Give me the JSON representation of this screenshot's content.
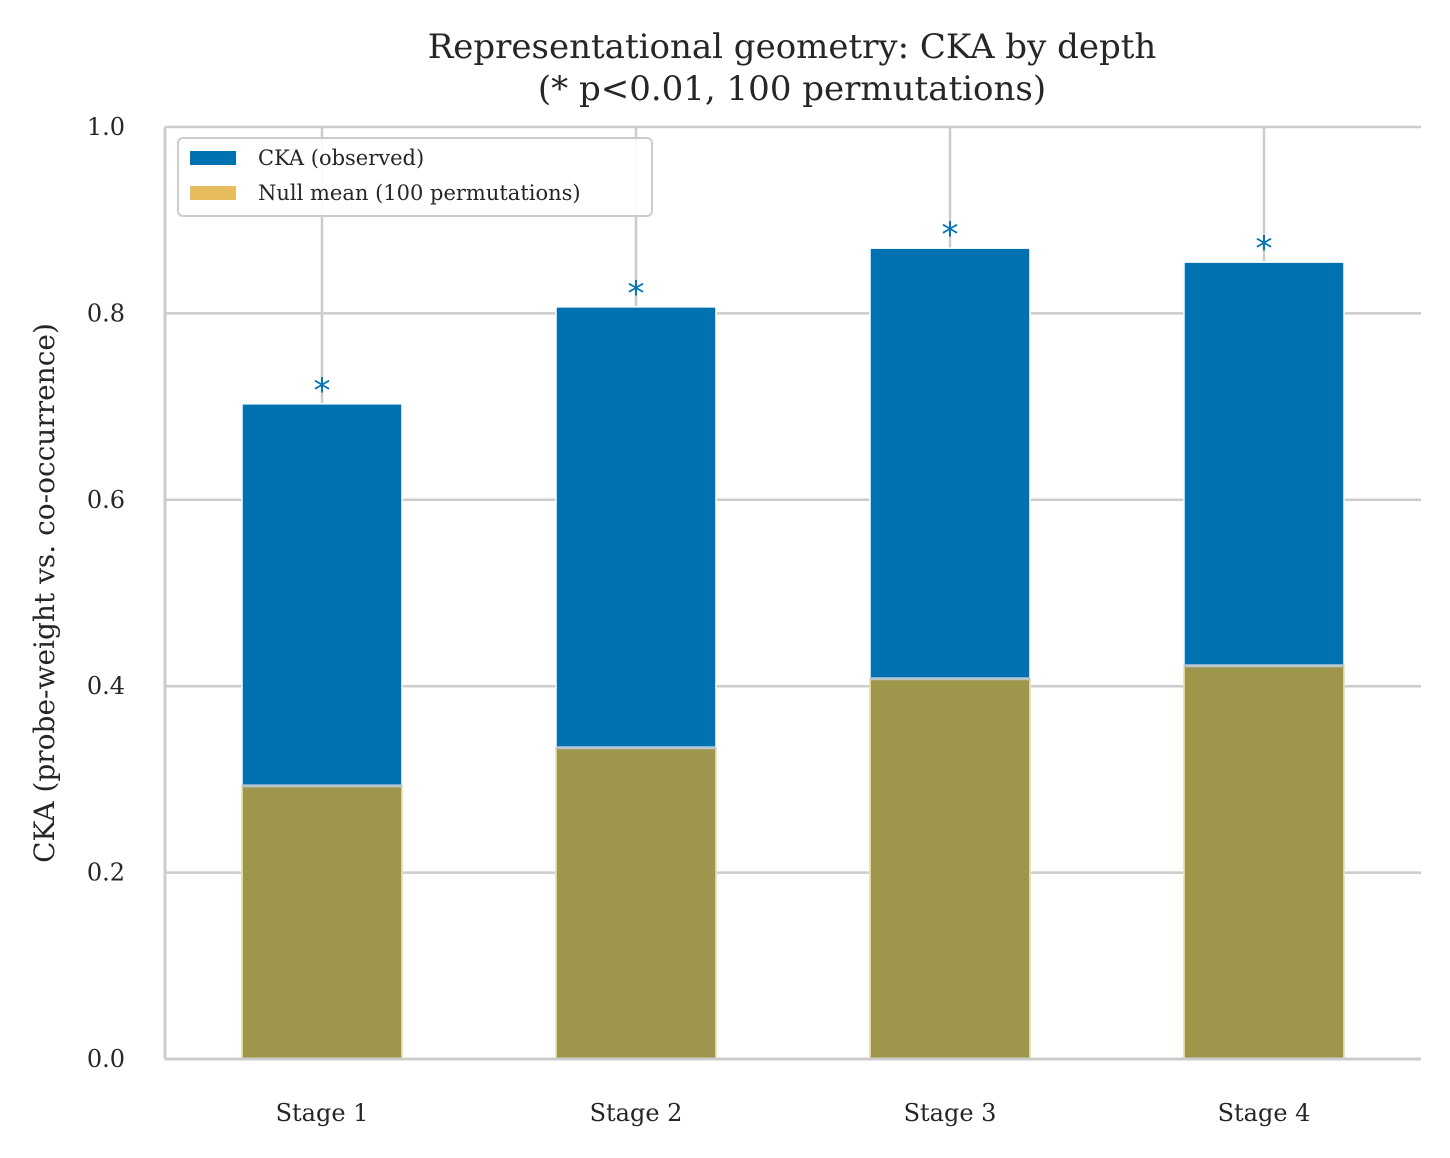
{
  "chart_data": {
    "type": "bar",
    "title_lines": [
      "Representational geometry: CKA by depth",
      "(* p<0.01, 100 permutations)"
    ],
    "ylabel": "CKA (probe-weight vs. co-occurrence)",
    "xlabel": "",
    "ylim": [
      0,
      1.0
    ],
    "yticks": [
      0.0,
      0.2,
      0.4,
      0.6,
      0.8,
      1.0
    ],
    "ytick_labels": [
      "0.0",
      "0.2",
      "0.4",
      "0.6",
      "0.8",
      "1.0"
    ],
    "categories": [
      "Stage 1",
      "Stage 2",
      "Stage 3",
      "Stage 4"
    ],
    "series": [
      {
        "name": "CKA (observed)",
        "values": [
          0.703,
          0.807,
          0.87,
          0.855
        ],
        "color": "#0072b2"
      },
      {
        "name": "Null mean (100 permutations)",
        "values": [
          0.293,
          0.334,
          0.408,
          0.422
        ],
        "color": "#e6bc5c"
      }
    ],
    "overlap_color": "#8a8c46",
    "significance_marker": "*",
    "significant": [
      true,
      true,
      true,
      true
    ],
    "marker_color": "#0072b2",
    "grid": true,
    "legend_position": "top-left"
  }
}
